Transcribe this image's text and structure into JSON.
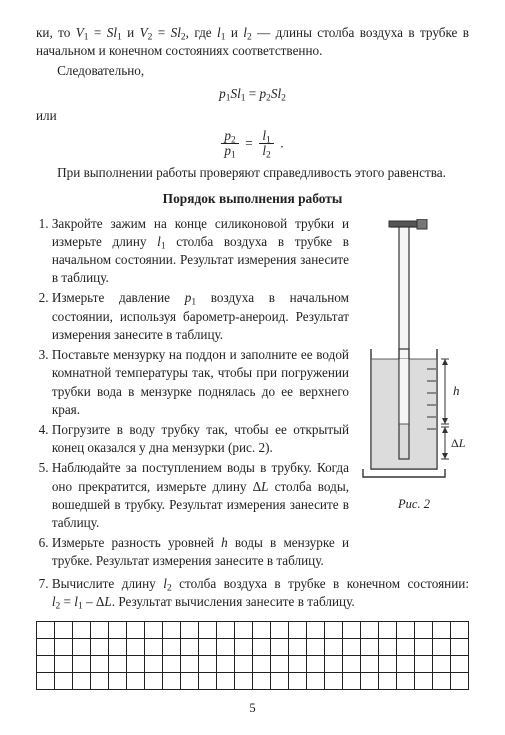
{
  "intro_para": "ки, то V₁ = Sl₁ и V₂ = Sl₂, где l₁ и l₂ — длины столба воздуха в трубке в начальном и конечном состояниях соответственно.",
  "sledovatelno": "Следовательно,",
  "eq1_lhs_p": "p",
  "eq1_lhs_s1": "1",
  "eq1_Sl": "Sl",
  "eq1_rhs_s2": "2",
  "ili": "или",
  "frac1_num": "p",
  "frac1_num_sub": "2",
  "frac1_den": "p",
  "frac1_den_sub": "1",
  "frac2_num": "l",
  "frac2_num_sub": "1",
  "frac2_den": "l",
  "frac2_den_sub": "2",
  "check_para": "При выполнении работы проверяют справедливость этого равенства.",
  "section_title": "Порядок выполнения работы",
  "steps": {
    "s1": "Закройте зажим на конце силиконовой трубки и измерьте длину l₁ столба воздуха в трубке в начальном состоянии. Результат измерения занесите в таблицу.",
    "s2": "Измерьте давление p₁ воздуха в начальном состоянии, используя барометр-анероид. Результат измерения занесите в таблицу.",
    "s3": "Поставьте мензурку на поддон и заполните ее водой комнатной температуры так, чтобы при погружении трубки вода в мензурке поднялась до ее верхнего края.",
    "s4": "Погрузите в воду трубку так, чтобы ее открытый конец оказался у дна мензурки (рис. 2).",
    "s5": "Наблюдайте за поступлением воды в трубку. Когда оно прекратится, измерьте длину ΔL столба воды, вошедшей в трубку. Результат измерения занесите в таблицу.",
    "s6": "Измерьте разность уровней h воды в мензурке и трубке. Результат измерения занесите в таблицу.",
    "s7": "Вычислите длину l₂ столба воздуха в трубке в конечном состоянии: l₂ = l₁ – ΔL. Результат вычисления занесите в таблицу."
  },
  "figure": {
    "caption": "Рис. 2",
    "label_h": "h",
    "label_dL": "ΔL",
    "colors": {
      "stroke": "#333333",
      "water": "#dcdcdc",
      "tube_fill": "#f5f5f5",
      "clamp": "#555555"
    }
  },
  "grid": {
    "rows": 4,
    "cols": 24
  },
  "page_number": "5"
}
